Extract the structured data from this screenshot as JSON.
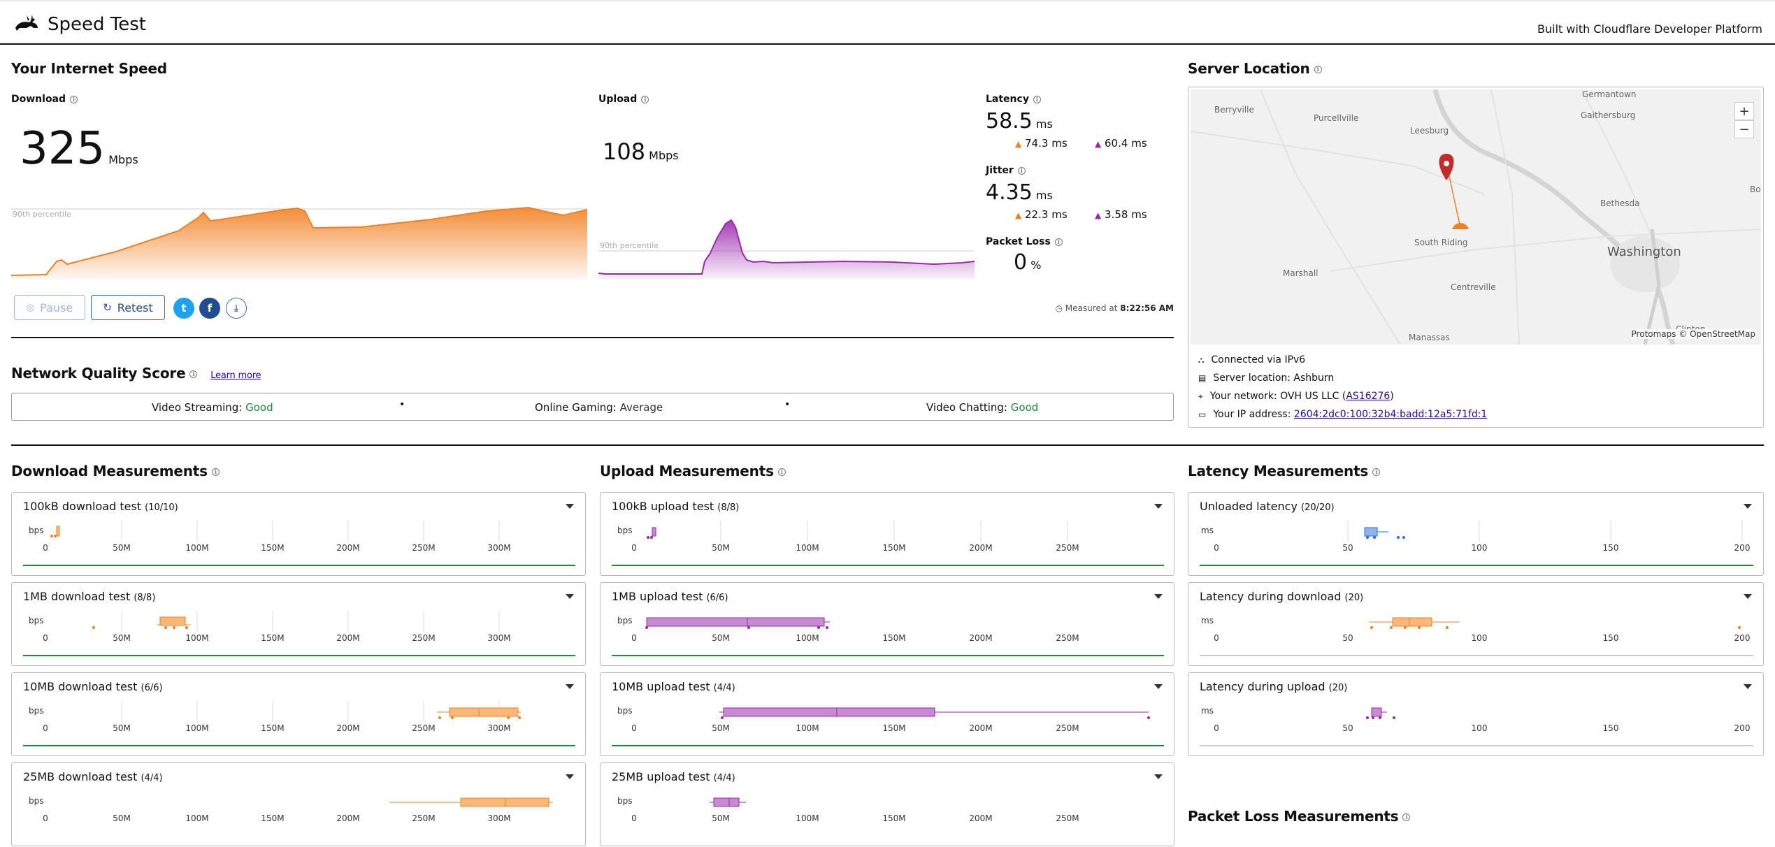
{
  "header": {
    "title": "Speed Test",
    "built_with": "Built with Cloudflare Developer Platform"
  },
  "speed": {
    "section_title": "Your Internet Speed",
    "download": {
      "label": "Download",
      "value": "325",
      "unit": "Mbps",
      "percentile_label": "90th percentile"
    },
    "upload": {
      "label": "Upload",
      "value": "108",
      "unit": "Mbps",
      "percentile_label": "90th percentile"
    },
    "latency": {
      "label": "Latency",
      "value": "58.5",
      "unit": "ms",
      "down_value": "74.3",
      "down_unit": "ms",
      "up_value": "60.4",
      "up_unit": "ms"
    },
    "jitter": {
      "label": "Jitter",
      "value": "4.35",
      "unit": "ms",
      "down_value": "22.3",
      "down_unit": "ms",
      "up_value": "3.58",
      "up_unit": "ms"
    },
    "packet_loss": {
      "label": "Packet Loss",
      "value": "0",
      "unit": "%"
    },
    "measured_prefix": "Measured at",
    "measured_time": "8:22:56 AM",
    "buttons": {
      "pause": "Pause",
      "retest": "Retest"
    }
  },
  "network_quality": {
    "title": "Network Quality Score",
    "learn_more": "Learn more",
    "items": [
      {
        "label": "Video Streaming:",
        "value": "Good",
        "color": "#1e8a3c"
      },
      {
        "label": "Online Gaming:",
        "value": "Average",
        "color": "#333333"
      },
      {
        "label": "Video Chatting:",
        "value": "Good",
        "color": "#1e8a3c"
      }
    ]
  },
  "server": {
    "title": "Server Location",
    "map_attribution": "Protomaps © OpenStreetMap",
    "places": [
      "Berryville",
      "Purcellville",
      "Leesburg",
      "Germantown",
      "Gaithersburg",
      "Bethesda",
      "Bo",
      "South Riding",
      "Washington",
      "Marshall",
      "Centreville",
      "Manassas",
      "Clinton"
    ],
    "connected": "Connected via IPv6",
    "location": "Server location: Ashburn",
    "network_prefix": "Your network: OVH US LLC (",
    "network_as": "AS16276",
    "network_suffix": ")",
    "ip_prefix": "Your IP address:",
    "ip": "2604:2dc0:100:32b4:badd:12a5:71fd:1"
  },
  "download_measurements": {
    "title": "Download Measurements",
    "axis_unit": "bps",
    "ticks": [
      "0",
      "50M",
      "100M",
      "150M",
      "200M",
      "250M",
      "300M"
    ],
    "tests": [
      {
        "name": "100kB download test",
        "count": "(10/10)"
      },
      {
        "name": "1MB download test",
        "count": "(8/8)"
      },
      {
        "name": "10MB download test",
        "count": "(6/6)"
      },
      {
        "name": "25MB download test",
        "count": "(4/4)"
      }
    ]
  },
  "upload_measurements": {
    "title": "Upload Measurements",
    "axis_unit": "bps",
    "ticks": [
      "0",
      "50M",
      "100M",
      "150M",
      "200M",
      "250M"
    ],
    "tests": [
      {
        "name": "100kB upload test",
        "count": "(8/8)"
      },
      {
        "name": "1MB upload test",
        "count": "(6/6)"
      },
      {
        "name": "10MB upload test",
        "count": "(4/4)"
      },
      {
        "name": "25MB upload test",
        "count": "(4/4)"
      }
    ]
  },
  "latency_measurements": {
    "title": "Latency Measurements",
    "axis_unit": "ms",
    "ticks": [
      "0",
      "50",
      "100",
      "150",
      "200"
    ],
    "tests": [
      {
        "name": "Unloaded latency",
        "count": "(20/20)"
      },
      {
        "name": "Latency during download",
        "count": "(20)"
      },
      {
        "name": "Latency during upload",
        "count": "(20)"
      }
    ]
  },
  "packet_loss_measurements": {
    "title": "Packet Loss Measurements"
  },
  "colors": {
    "download": "#f38020",
    "upload": "#9b27af",
    "latency": "#2c6fd6",
    "good": "#1e8a3c"
  }
}
